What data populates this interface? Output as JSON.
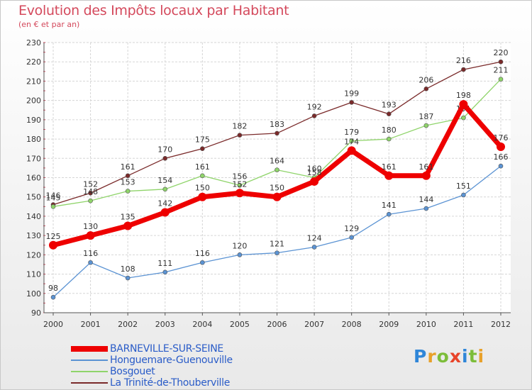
{
  "title": "Evolution des Impôts locaux par Habitant",
  "subtitle": "(en € et par an)",
  "logo": {
    "text": "Proxiti",
    "letters": [
      {
        "ch": "P",
        "color": "#2f86d8"
      },
      {
        "ch": "r",
        "color": "#e8a12a"
      },
      {
        "ch": "o",
        "color": "#7cbd3a"
      },
      {
        "ch": "x",
        "color": "#e8442a"
      },
      {
        "ch": "i",
        "color": "#2f86d8"
      },
      {
        "ch": "t",
        "color": "#7cbd3a"
      },
      {
        "ch": "i",
        "color": "#e8a12a"
      }
    ]
  },
  "chart_data": {
    "type": "line",
    "title": "Evolution des Impôts locaux par Habitant",
    "ylabel": "(en € et par an)",
    "xlabel": "",
    "x": [
      2000,
      2001,
      2002,
      2003,
      2004,
      2005,
      2006,
      2007,
      2008,
      2009,
      2010,
      2011,
      2012
    ],
    "ylim": [
      90,
      230
    ],
    "yticks": [
      90,
      100,
      110,
      120,
      130,
      140,
      150,
      160,
      170,
      180,
      190,
      200,
      210,
      220,
      230
    ],
    "grid": true,
    "legend_position": "bottom-left",
    "series": [
      {
        "name": "La Trinité-de-Thouberville",
        "color": "#7a2a2a",
        "values": [
          146,
          152,
          161,
          170,
          175,
          182,
          183,
          192,
          199,
          193,
          206,
          216,
          220
        ]
      },
      {
        "name": "Bosgouet",
        "color": "#8fd46a",
        "values": [
          145,
          148,
          153,
          154,
          161,
          156,
          164,
          160,
          179,
          180,
          187,
          191,
          211
        ]
      },
      {
        "name": "Honguemare-Guenouville",
        "color": "#5b93d3",
        "values": [
          98,
          116,
          108,
          111,
          116,
          120,
          121,
          124,
          129,
          141,
          144,
          151,
          166
        ]
      },
      {
        "name": "BARNEVILLE-SUR-SEINE",
        "color": "#ee0000",
        "values": [
          125,
          130,
          135,
          142,
          150,
          152,
          150,
          158,
          174,
          161,
          161,
          198,
          176
        ]
      }
    ],
    "legend_order": [
      "BARNEVILLE-SUR-SEINE",
      "Honguemare-Guenouville",
      "Bosgouet",
      "La Trinité-de-Thouberville"
    ]
  }
}
